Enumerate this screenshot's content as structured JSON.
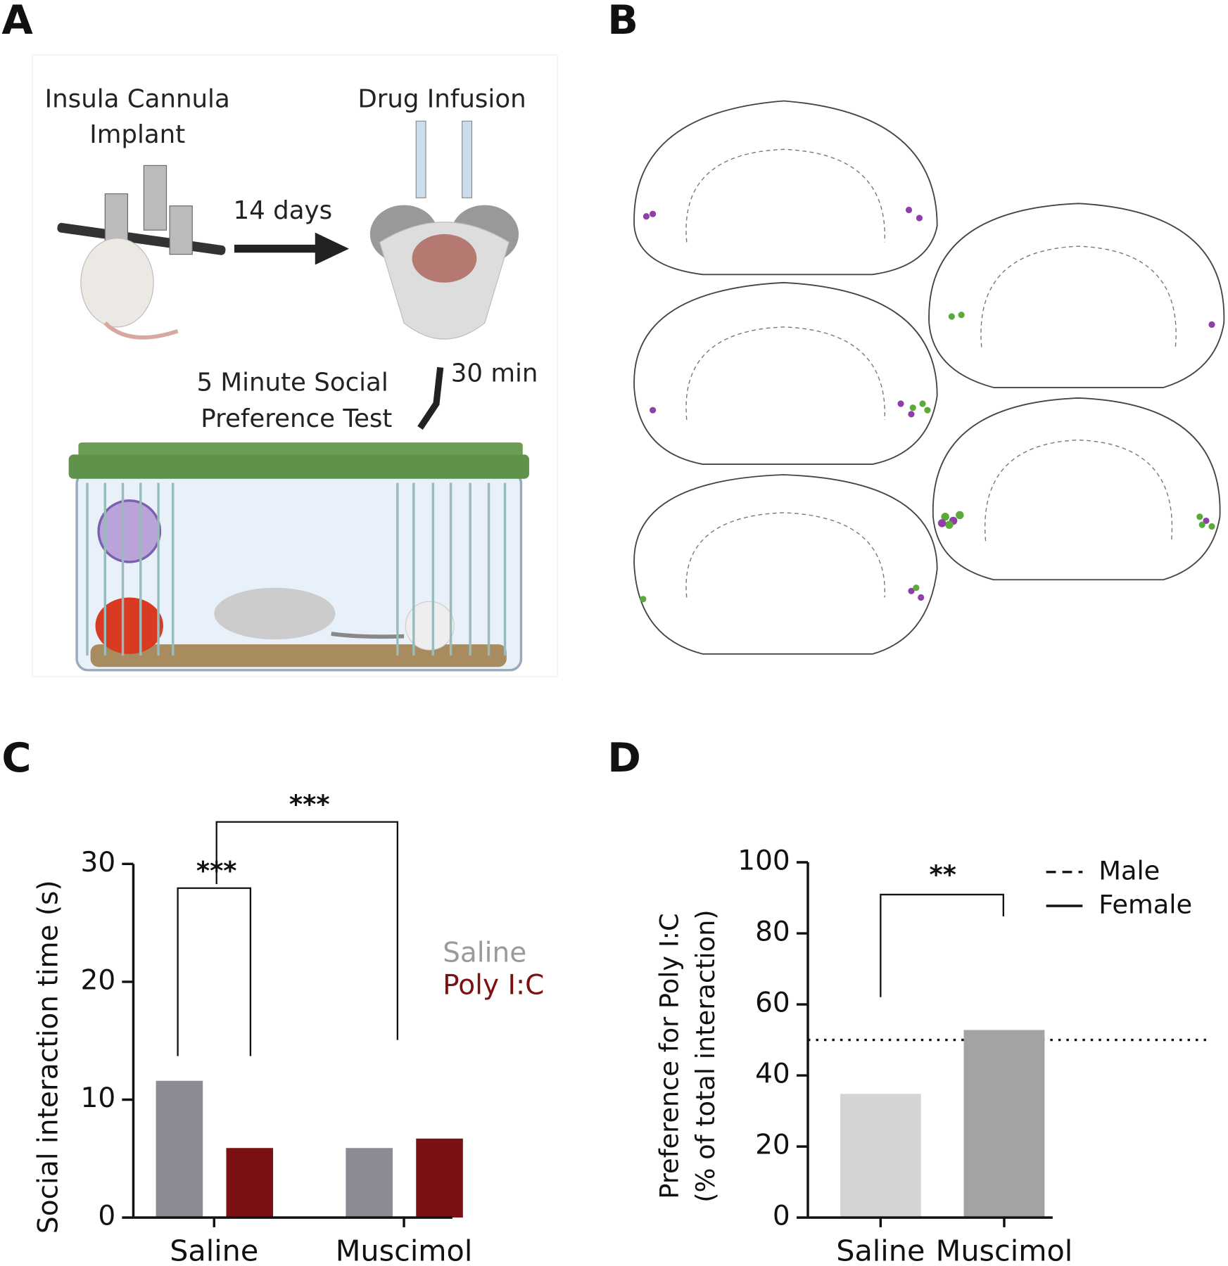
{
  "figure": {
    "panel_labels": [
      "A",
      "B",
      "C",
      "D"
    ],
    "panel_a": {
      "step1": [
        "Insula Cannula",
        "Implant"
      ],
      "interval1": "14 days",
      "step2": "Drug Infusion",
      "interval2": "30 min",
      "step3": [
        "5 Minute Social",
        "Preference Test"
      ]
    }
  },
  "chart_data": [
    {
      "type": "bar",
      "ylabel": "Social interaction time (s)",
      "categories": [
        "Saline",
        "Muscimol"
      ],
      "series": [
        {
          "name": "Saline",
          "color": "#8b8b93",
          "values": [
            11.6,
            5.9
          ]
        },
        {
          "name": "Poly I:C",
          "color": "#7b1113",
          "values": [
            5.9,
            6.7
          ]
        }
      ],
      "ylim": [
        0,
        30
      ],
      "yticks": [
        0,
        10,
        20,
        30
      ],
      "annotations": [
        "***",
        "***"
      ]
    },
    {
      "type": "bar",
      "ylabel": [
        "Preference for Poly I:C",
        "(% of total interaction)"
      ],
      "categories": [
        "Saline",
        "Muscimol"
      ],
      "values": [
        34.8,
        52.8
      ],
      "colors": [
        "#d4d4d4",
        "#a3a3a3"
      ],
      "ylim": [
        0,
        100
      ],
      "yticks": [
        0,
        20,
        40,
        60,
        80,
        100
      ],
      "reference_line": 50,
      "annotations": [
        "**"
      ],
      "line_legend": [
        {
          "name": "Male",
          "dashed": true
        },
        {
          "name": "Female",
          "dashed": false
        }
      ]
    }
  ]
}
